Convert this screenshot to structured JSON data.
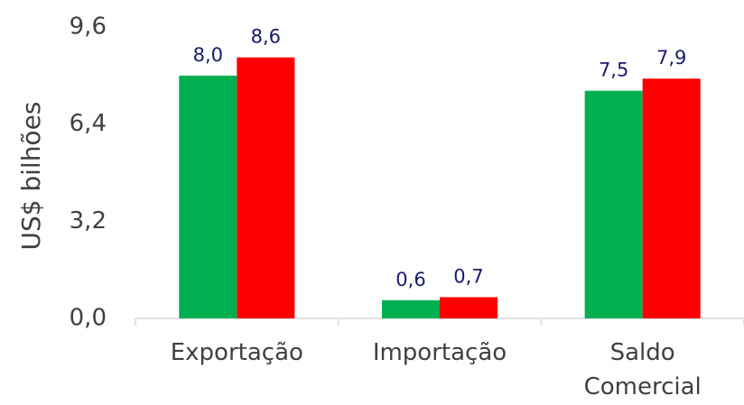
{
  "chart_data": {
    "type": "bar",
    "y_label": "US$ bilhões",
    "categories": [
      "Exportação",
      "Importação",
      "Saldo Comercial"
    ],
    "series": [
      {
        "color": "#00b050",
        "values": [
          8.0,
          0.6,
          7.5
        ],
        "value_labels": [
          "8,0",
          "0,6",
          "7,5"
        ]
      },
      {
        "color": "#ff0000",
        "values": [
          8.6,
          0.7,
          7.9
        ],
        "value_labels": [
          "8,6",
          "0,7",
          "7,9"
        ]
      }
    ],
    "ylim": [
      0,
      9.6
    ],
    "yticks": [
      {
        "value": 0,
        "label": "0,0"
      },
      {
        "value": 3.2,
        "label": "3,2"
      },
      {
        "value": 6.4,
        "label": "6,4"
      },
      {
        "value": 9.6,
        "label": "9,6"
      }
    ],
    "grid": false
  }
}
